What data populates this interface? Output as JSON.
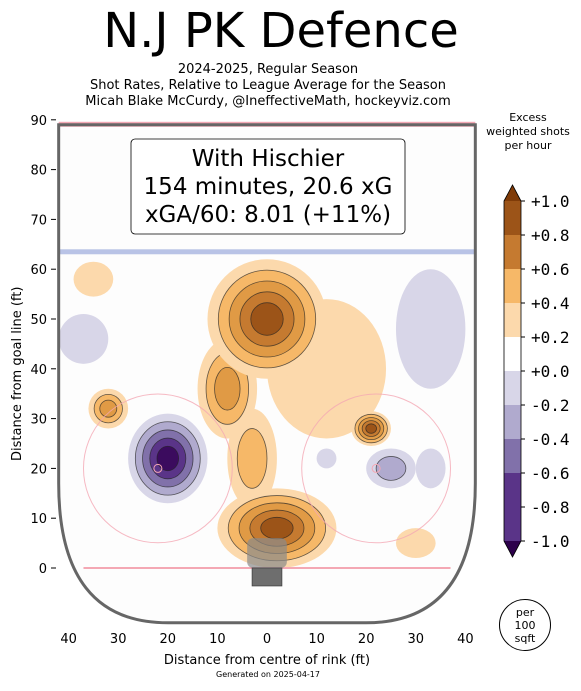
{
  "header": {
    "title": "N.J PK Defence",
    "subtitle_lines": [
      "2024-2025, Regular Season",
      "Shot Rates, Relative to League Average for the Season",
      "Micah Blake McCurdy, @IneffectiveMath, hockeyviz.com"
    ]
  },
  "infobox": {
    "lines": [
      "With Hischier",
      "154 minutes, 20.6 xG",
      "xGA/60: 8.01 (+11%)"
    ]
  },
  "colorbar": {
    "title_lines": [
      "Excess",
      "weighted shots",
      "per hour"
    ],
    "tick_labels": [
      "+1.0",
      "+0.8",
      "+0.6",
      "+0.4",
      "+0.2",
      "+0.0",
      "-0.2",
      "-0.4",
      "-0.6",
      "-0.8",
      "-1.0"
    ],
    "colors": [
      "#9c5418",
      "#c57a30",
      "#e09a45",
      "#f6b868",
      "#fcd9ac",
      "#ffffff",
      "#d8d6e8",
      "#b0aace",
      "#8171aa",
      "#5a3488",
      "#3b0b5e"
    ],
    "min_arrow_color": "#2d004b",
    "max_arrow_color": "#7f3b08"
  },
  "unit_badge": [
    "per",
    "100",
    "sqft"
  ],
  "footer": "Generated on 2025-04-17",
  "colors": {
    "rink_outline": "#666666",
    "red_line": "#f4a8b4",
    "blue_line": "#a8b4e0",
    "circle": "#f4a8b4"
  },
  "chart_data": {
    "type": "heatmap",
    "xlabel": "Distance from centre of rink (ft)",
    "ylabel": "Distance from goal line (ft)",
    "x_ticks": [
      "40",
      "30",
      "20",
      "10",
      "0",
      "10",
      "20",
      "30",
      "40"
    ],
    "y_ticks": [
      "0",
      "10",
      "20",
      "30",
      "40",
      "50",
      "60",
      "70",
      "80",
      "90"
    ],
    "xlim": [
      -42,
      42
    ],
    "ylim": [
      -11,
      90
    ],
    "color_scale": [
      -1.0,
      1.0
    ],
    "blobs": [
      {
        "x": 0,
        "y": 50,
        "value": 1.0,
        "rx": 12,
        "ry": 12
      },
      {
        "x": -8,
        "y": 36,
        "value": 0.5,
        "rx": 6,
        "ry": 10
      },
      {
        "x": 2,
        "y": 8,
        "value": 1.0,
        "rx": 12,
        "ry": 8
      },
      {
        "x": -3,
        "y": 22,
        "value": 0.4,
        "rx": 5,
        "ry": 10
      },
      {
        "x": -32,
        "y": 32,
        "value": 0.7,
        "rx": 4,
        "ry": 4
      },
      {
        "x": 21,
        "y": 28,
        "value": 0.9,
        "rx": 4,
        "ry": 3.5
      },
      {
        "x": 12,
        "y": 40,
        "value": 0.3,
        "rx": 12,
        "ry": 14
      },
      {
        "x": -35,
        "y": 58,
        "value": 0.3,
        "rx": 4,
        "ry": 3.5
      },
      {
        "x": 30,
        "y": 5,
        "value": 0.3,
        "rx": 4,
        "ry": 3
      },
      {
        "x": -20,
        "y": 22,
        "value": -1.0,
        "rx": 8,
        "ry": 9
      },
      {
        "x": -37,
        "y": 46,
        "value": -0.3,
        "rx": 5,
        "ry": 5
      },
      {
        "x": 33,
        "y": 48,
        "value": -0.3,
        "rx": 7,
        "ry": 12
      },
      {
        "x": 25,
        "y": 20,
        "value": -0.4,
        "rx": 5,
        "ry": 4
      },
      {
        "x": 12,
        "y": 22,
        "value": -0.2,
        "rx": 2,
        "ry": 2
      },
      {
        "x": 33,
        "y": 20,
        "value": -0.2,
        "rx": 3,
        "ry": 4
      }
    ]
  }
}
